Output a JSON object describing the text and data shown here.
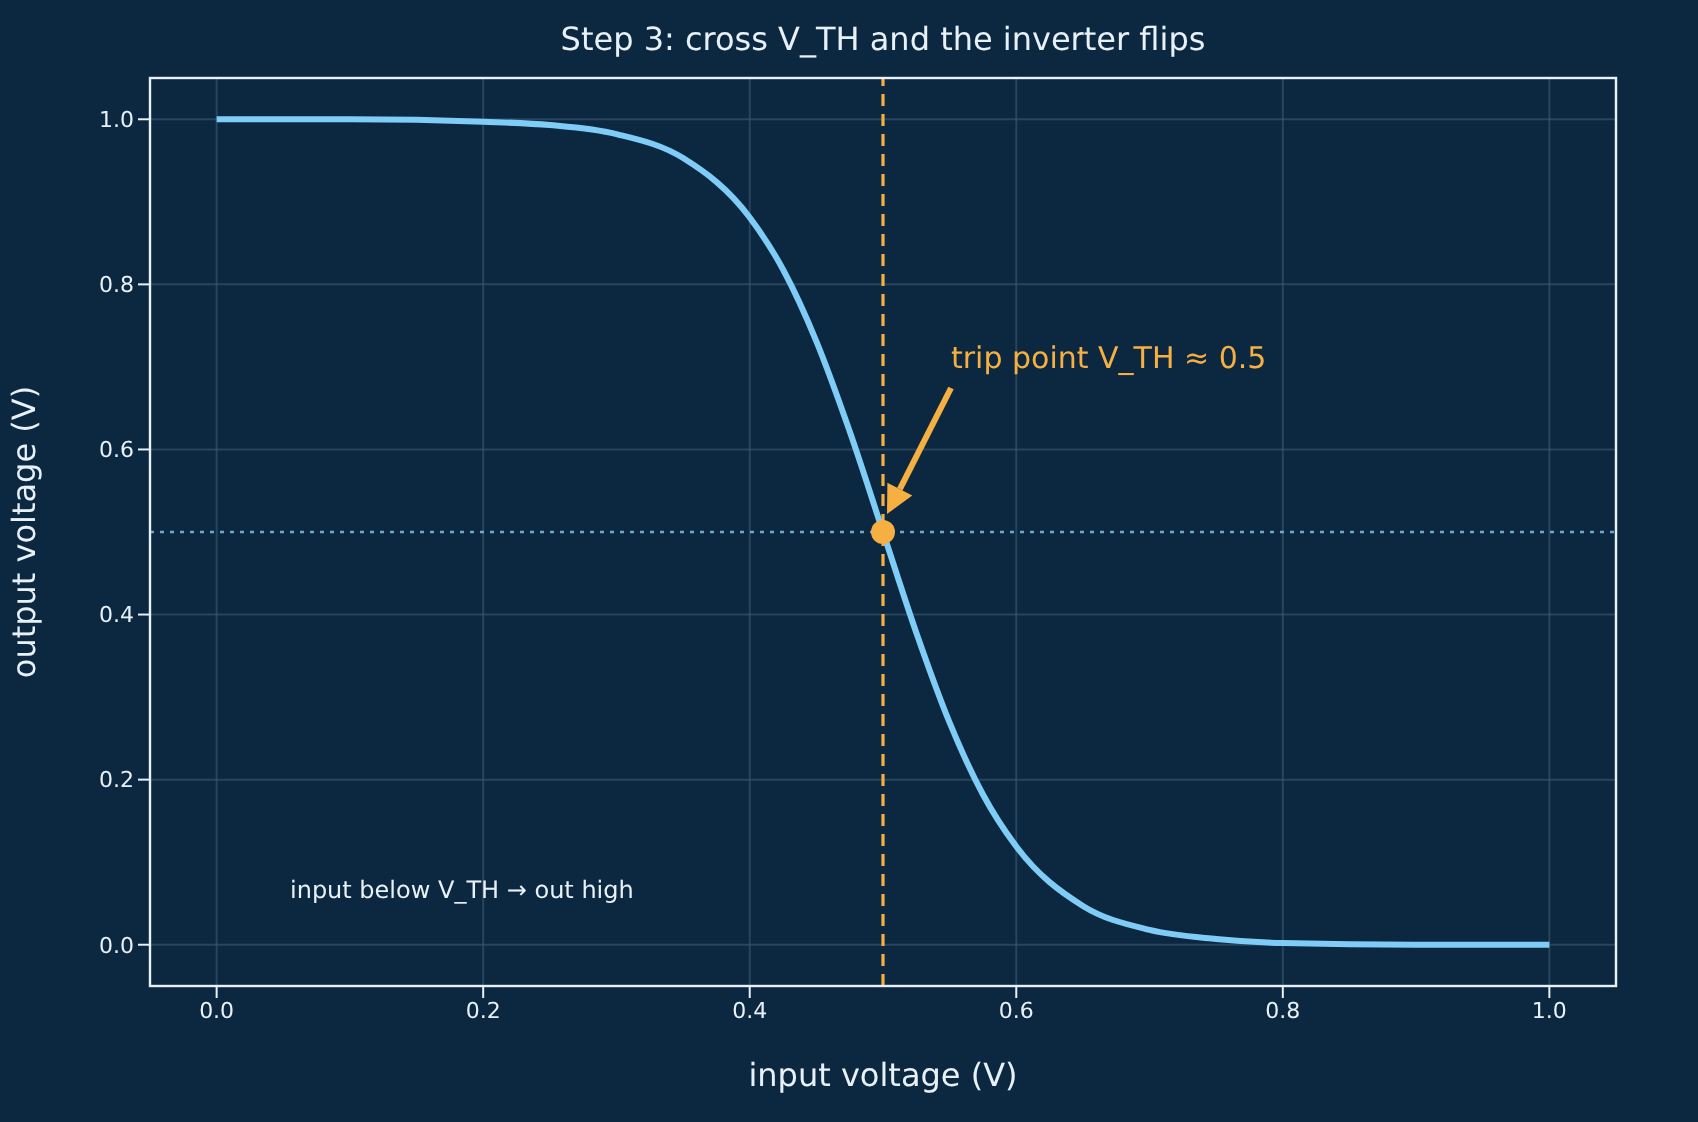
{
  "chart_data": {
    "type": "line",
    "title": "Step 3: cross V_TH and the inverter flips",
    "xlabel": "input voltage  (V)",
    "ylabel": "output voltage  (V)",
    "x": [
      0,
      0.1,
      0.2,
      0.25,
      0.3,
      0.35,
      0.4,
      0.425,
      0.45,
      0.475,
      0.5,
      0.525,
      0.55,
      0.575,
      0.6,
      0.65,
      0.7,
      0.75,
      0.8,
      0.9,
      1.0
    ],
    "series": [
      {
        "color": "#7fcdf7",
        "marker": "none",
        "values": [
          1.0,
          1.0,
          0.997,
          0.993,
          0.982,
          0.953,
          0.881,
          0.818,
          0.731,
          0.622,
          0.5,
          0.378,
          0.269,
          0.182,
          0.119,
          0.047,
          0.018,
          0.007,
          0.002,
          0.0,
          0.0
        ]
      },
      {
        "type": "scatter",
        "color": "#f5b041",
        "marker": "circle",
        "x": [
          0.5
        ],
        "values": [
          0.5
        ]
      }
    ],
    "xlim": [
      -0.05,
      1.05
    ],
    "ylim": [
      -0.05,
      1.05
    ],
    "xticks": [
      {
        "value": 0,
        "label": "0.0"
      },
      {
        "value": 0.2,
        "label": "0.2"
      },
      {
        "value": 0.4,
        "label": "0.4"
      },
      {
        "value": 0.6,
        "label": "0.6"
      },
      {
        "value": 0.8,
        "label": "0.8"
      },
      {
        "value": 1,
        "label": "1.0"
      }
    ],
    "yticks": [
      {
        "value": 0,
        "label": "0.0"
      },
      {
        "value": 0.2,
        "label": "0.2"
      },
      {
        "value": 0.4,
        "label": "0.4"
      },
      {
        "value": 0.6,
        "label": "0.6"
      },
      {
        "value": 0.8,
        "label": "0.8"
      },
      {
        "value": 1,
        "label": "1.0"
      }
    ],
    "ref_lines": [
      {
        "axis": "x",
        "value": 0.5,
        "color": "#f5b041",
        "line_style": "dashed"
      },
      {
        "axis": "y",
        "value": 0.5,
        "color": "#6fa8c8",
        "line_style": "dotted"
      }
    ],
    "annotations": [
      "trip point V_TH ≈ 0.5",
      "input below V_TH → out high"
    ],
    "grid": true,
    "line_style": "solid"
  }
}
